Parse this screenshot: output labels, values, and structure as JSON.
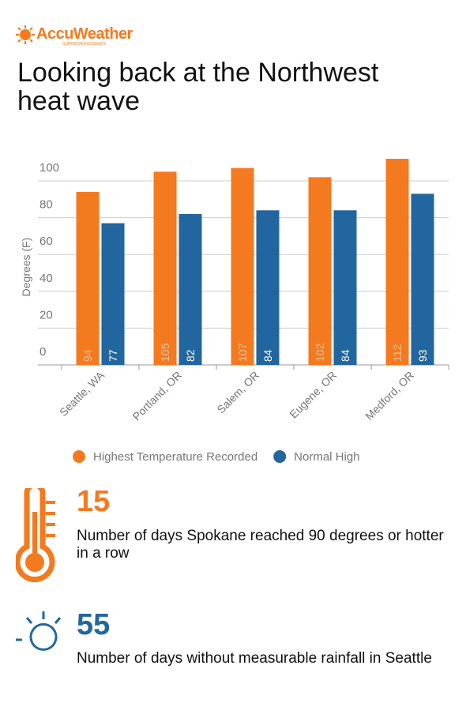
{
  "header": {
    "brand": "AccuWeather",
    "tagline": "SUPERIOR ACCURACY",
    "title": "Looking back at the Northwest heat wave"
  },
  "chart_data": {
    "type": "bar",
    "y_label": "Degrees (F)",
    "categories": [
      "Seattle, WA",
      "Portland, OR",
      "Salem, OR",
      "Eugene, OR",
      "Medford, OR"
    ],
    "series": [
      {
        "name": "Highest Temperature Recorded",
        "color": "#f47a20",
        "values": [
          94,
          105,
          107,
          102,
          112
        ]
      },
      {
        "name": "Normal High",
        "color": "#2266a0",
        "values": [
          77,
          82,
          84,
          84,
          93
        ]
      }
    ],
    "ylim": [
      0,
      115
    ],
    "yticks": [
      0,
      20,
      40,
      60,
      80,
      100
    ],
    "grid": true,
    "legend": "bottom"
  },
  "stats": [
    {
      "number": "15",
      "text": "Number of days Spokane reached 90 degrees or hotter in a row"
    },
    {
      "number": "55",
      "text": "Number of days without measurable rainfall in Seattle"
    }
  ]
}
